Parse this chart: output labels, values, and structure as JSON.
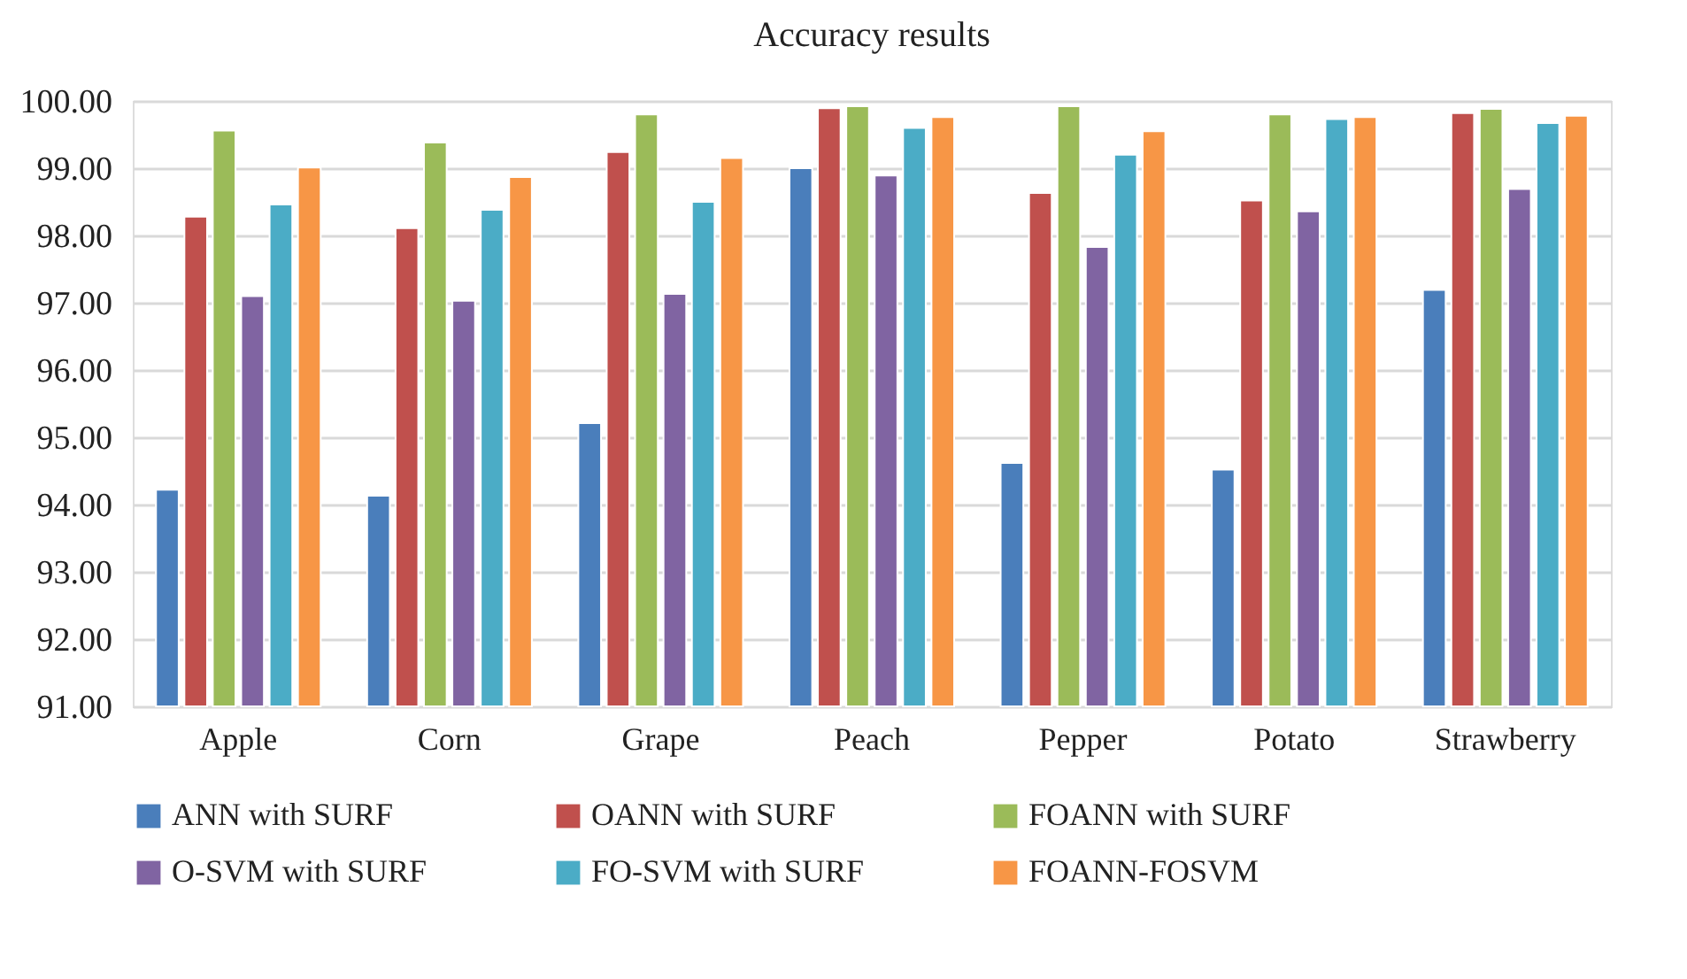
{
  "chart_data": {
    "type": "bar",
    "title": "Accuracy results",
    "categories": [
      "Apple",
      "Corn",
      "Grape",
      "Peach",
      "Pepper",
      "Potato",
      "Strawberry"
    ],
    "series": [
      {
        "name": "ANN with SURF",
        "color": "#4a7ebb",
        "values": [
          94.22,
          94.13,
          95.21,
          99.0,
          94.62,
          94.52,
          97.19
        ]
      },
      {
        "name": "OANN with SURF",
        "color": "#c0504d",
        "values": [
          98.28,
          98.11,
          99.24,
          99.89,
          98.63,
          98.52,
          99.82
        ]
      },
      {
        "name": "FOANN with SURF",
        "color": "#9bbb59",
        "values": [
          99.56,
          99.38,
          99.8,
          99.92,
          99.92,
          99.8,
          99.88
        ]
      },
      {
        "name": "O-SVM with SURF",
        "color": "#8064a2",
        "values": [
          97.1,
          97.03,
          97.13,
          98.89,
          97.83,
          98.36,
          98.69
        ]
      },
      {
        "name": "FO-SVM with SURF",
        "color": "#4bacc6",
        "values": [
          98.46,
          98.38,
          98.5,
          99.6,
          99.2,
          99.73,
          99.67
        ]
      },
      {
        "name": "FOANN-FOSVM",
        "color": "#f79646",
        "values": [
          99.01,
          98.87,
          99.15,
          99.76,
          99.55,
          99.76,
          99.78
        ]
      }
    ],
    "ylim": [
      91,
      100
    ],
    "yticks": [
      {
        "value": 91,
        "label": "91.00"
      },
      {
        "value": 92,
        "label": "92.00"
      },
      {
        "value": 93,
        "label": "93.00"
      },
      {
        "value": 94,
        "label": "94.00"
      },
      {
        "value": 95,
        "label": "95.00"
      },
      {
        "value": 96,
        "label": "96.00"
      },
      {
        "value": 97,
        "label": "97.00"
      },
      {
        "value": 98,
        "label": "98.00"
      },
      {
        "value": 99,
        "label": "99.00"
      },
      {
        "value": 100,
        "label": "100.00"
      }
    ],
    "grid": "y",
    "legend": "bottom"
  }
}
